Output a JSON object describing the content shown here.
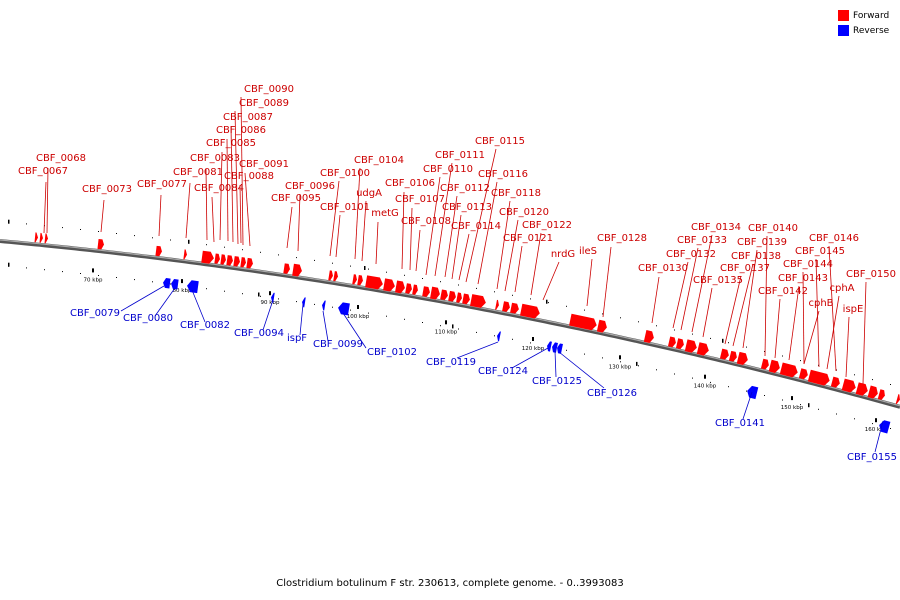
{
  "legend": {
    "forward": {
      "label": "Forward",
      "color": "#ff0000"
    },
    "reverse": {
      "label": "Reverse",
      "color": "#0000ff"
    }
  },
  "caption": "Clostridium botulinum F str. 230613, complete genome. - 0..3993083",
  "scale_labels": [
    "70 kbp",
    "80 kbp",
    "90 kbp",
    "100 kbp",
    "110 kbp",
    "120 kbp",
    "130 kbp",
    "140 kbp",
    "150 kbp",
    "160 kbp"
  ],
  "forward_labels": [
    "CBF_0067",
    "CBF_0068",
    "CBF_0073",
    "CBF_0077",
    "CBF_0081",
    "CBF_0083",
    "CBF_0084",
    "CBF_0085",
    "CBF_0086",
    "CBF_0087",
    "CBF_0088",
    "CBF_0089",
    "CBF_0090",
    "CBF_0091",
    "CBF_0095",
    "CBF_0096",
    "CBF_0100",
    "CBF_0101",
    "CBF_0104",
    "udgA",
    "metG",
    "CBF_0106",
    "CBF_0107",
    "CBF_0108",
    "CBF_0110",
    "CBF_0111",
    "CBF_0112",
    "CBF_0113",
    "CBF_0114",
    "CBF_0115",
    "CBF_0116",
    "CBF_0118",
    "CBF_0120",
    "CBF_0121",
    "CBF_0122",
    "nrdG",
    "ileS",
    "CBF_0128",
    "CBF_0130",
    "CBF_0132",
    "CBF_0133",
    "CBF_0134",
    "CBF_0135",
    "CBF_0137",
    "CBF_0138",
    "CBF_0139",
    "CBF_0140",
    "CBF_0142",
    "CBF_0143",
    "CBF_0144",
    "CBF_0145",
    "CBF_0146",
    "cphB",
    "cphA",
    "ispE",
    "CBF_0150"
  ],
  "reverse_labels": [
    "CBF_0079",
    "CBF_0080",
    "CBF_0082",
    "CBF_0094",
    "ispF",
    "CBF_0099",
    "CBF_0102",
    "CBF_0119",
    "CBF_0124",
    "CBF_0125",
    "CBF_0126",
    "CBF_0141",
    "CBF_0155"
  ]
}
